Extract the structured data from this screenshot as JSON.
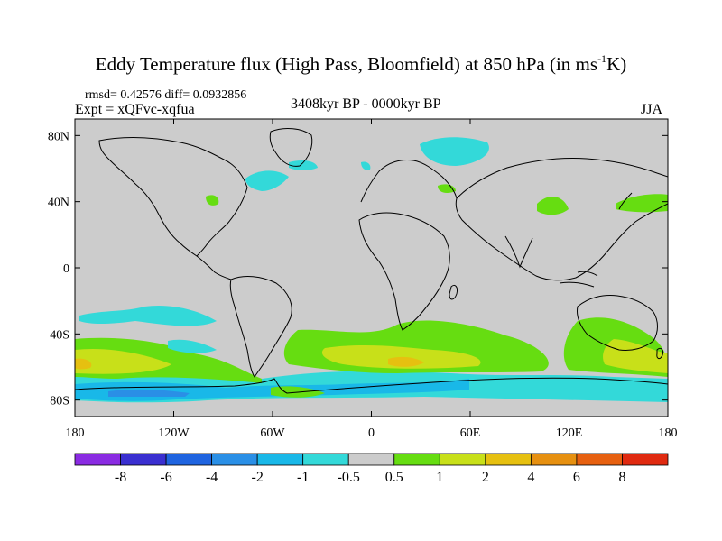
{
  "title_main": "Eddy Temperature flux (High Pass, Bloomfield) at 850 hPa (in ms",
  "title_sup": "-1",
  "title_end": "K)",
  "stats": "rmsd= 0.42576 diff= 0.0932856",
  "expt": "Expt = xQFvc-xqfua",
  "period": "3408kyr BP - 0000kyr BP",
  "season": "JJA",
  "lat_ticks": [
    "80N",
    "40N",
    "0",
    "40S",
    "80S"
  ],
  "lon_ticks": [
    "180",
    "120W",
    "60W",
    "0",
    "60E",
    "120E",
    "180"
  ],
  "colorbar": {
    "labels": [
      "-8",
      "-6",
      "-4",
      "-2",
      "-1",
      "-0.5",
      "0.5",
      "1",
      "2",
      "4",
      "6",
      "8"
    ],
    "colors": [
      "#8a2be2",
      "#3a2fd0",
      "#1f64e0",
      "#2a8fe6",
      "#19b8e8",
      "#33d9d9",
      "#cccccc",
      "#66dd11",
      "#c8e019",
      "#e6c010",
      "#e69010",
      "#e66010",
      "#e02a10"
    ]
  },
  "colors": {
    "ocean_background": "#cccccc",
    "coastline": "#000000"
  },
  "anomalies": [
    {
      "name": "southern-ocean-band-blue",
      "color": "#33d9d9"
    },
    {
      "name": "southern-ocean-band-green",
      "color": "#66dd11"
    },
    {
      "name": "southern-ocean-band-yellow",
      "color": "#c8e019"
    }
  ]
}
